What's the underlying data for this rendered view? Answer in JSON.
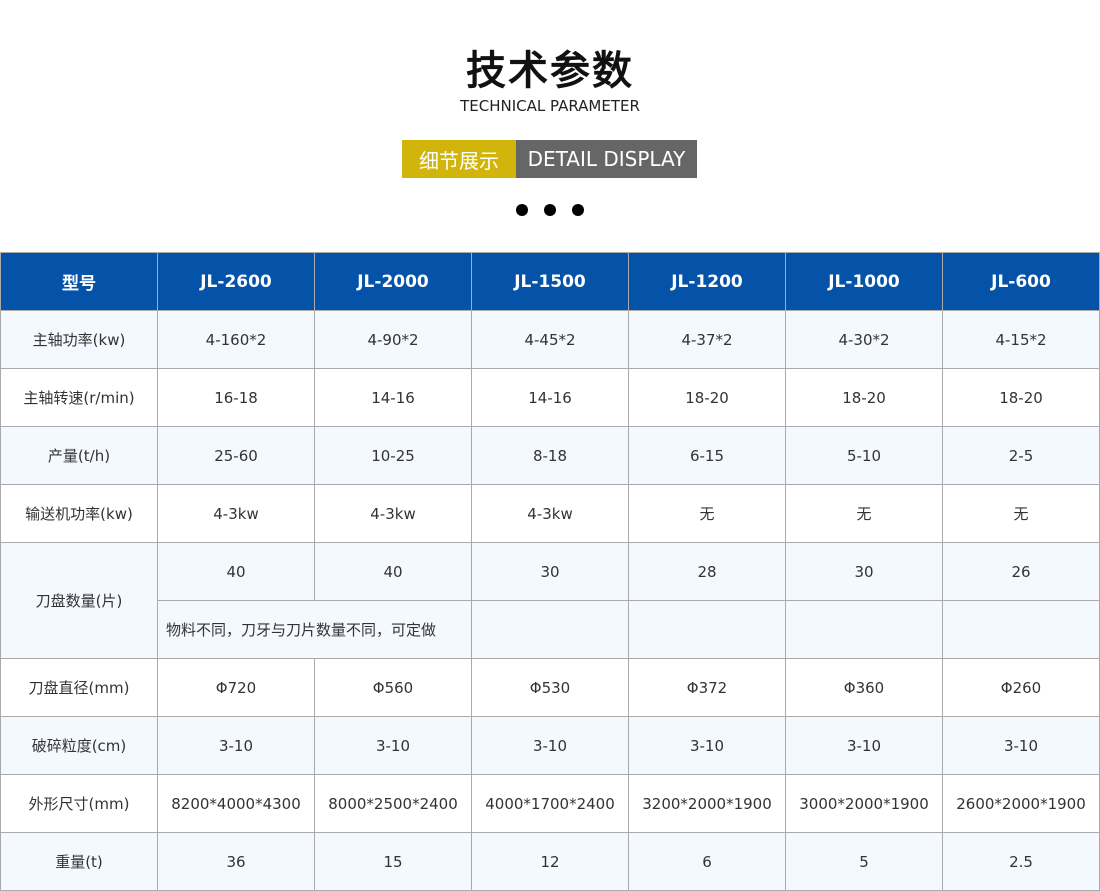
{
  "header": {
    "title": "技术参数",
    "subtitle": "TECHNICAL PARAMETER",
    "badge_cn": "细节展示",
    "badge_en": "DETAIL DISPLAY"
  },
  "colors": {
    "header_blue": "#0553a8",
    "badge_yellow": "#d1b50a",
    "badge_gray": "#666666"
  },
  "table": {
    "columns": [
      "型号",
      "JL-2600",
      "JL-2000",
      "JL-1500",
      "JL-1200",
      "JL-1000",
      "JL-600"
    ],
    "rows": [
      {
        "label": "主轴功率(kw)",
        "values": [
          "4-160*2",
          "4-90*2",
          "4-45*2",
          "4-37*2",
          "4-30*2",
          "4-15*2"
        ]
      },
      {
        "label": "主轴转速(r/min)",
        "values": [
          "16-18",
          "14-16",
          "14-16",
          "18-20",
          "18-20",
          "18-20"
        ]
      },
      {
        "label": "产量(t/h)",
        "values": [
          "25-60",
          "10-25",
          "8-18",
          "6-15",
          "5-10",
          "2-5"
        ]
      },
      {
        "label": "输送机功率(kw)",
        "values": [
          "4-3kw",
          "4-3kw",
          "4-3kw",
          "无",
          "无",
          "无"
        ]
      },
      {
        "label": "刀盘数量(片)",
        "values": [
          "40",
          "40",
          "30",
          "28",
          "30",
          "26"
        ],
        "note": "物料不同，刀牙与刀片数量不同，可定做"
      },
      {
        "label": "刀盘直径(mm)",
        "values": [
          "Φ720",
          "Φ560",
          "Φ530",
          "Φ372",
          "Φ360",
          "Φ260"
        ]
      },
      {
        "label": "破碎粒度(cm)",
        "values": [
          "3-10",
          "3-10",
          "3-10",
          "3-10",
          "3-10",
          "3-10"
        ]
      },
      {
        "label": "外形尺寸(mm)",
        "values": [
          "8200*4000*4300",
          "8000*2500*2400",
          "4000*1700*2400",
          "3200*2000*1900",
          "3000*2000*1900",
          "2600*2000*1900"
        ]
      },
      {
        "label": "重量(t)",
        "values": [
          "36",
          "15",
          "12",
          "6",
          "5",
          "2.5"
        ]
      }
    ]
  }
}
